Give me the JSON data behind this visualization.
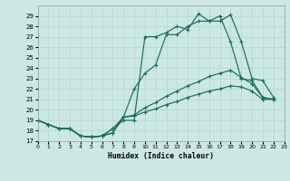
{
  "background_color": "#cce8e5",
  "grid_color": "#b8d8d5",
  "line_color": "#1a6b5a",
  "xlabel": "Humidex (Indice chaleur)",
  "ylim": [
    17,
    30
  ],
  "xlim": [
    0,
    23
  ],
  "yticks": [
    17,
    18,
    19,
    20,
    21,
    22,
    23,
    24,
    25,
    26,
    27,
    28,
    29
  ],
  "xticks": [
    0,
    1,
    2,
    3,
    4,
    5,
    6,
    7,
    8,
    9,
    10,
    11,
    12,
    13,
    14,
    15,
    16,
    17,
    18,
    19,
    20,
    21,
    22,
    23
  ],
  "line1_x": [
    0,
    1,
    2,
    3,
    4,
    5,
    6,
    7,
    8,
    9,
    10,
    11,
    12,
    13,
    14,
    15,
    16,
    17,
    18,
    19,
    20,
    21,
    22
  ],
  "line1_y": [
    19,
    18.6,
    18.2,
    18.2,
    17.5,
    17.4,
    17.5,
    18.2,
    19.0,
    19.0,
    27.0,
    27.0,
    27.4,
    28.0,
    27.7,
    29.2,
    28.5,
    28.5,
    29.1,
    26.5,
    23.0,
    22.8,
    21.2
  ],
  "line2_x": [
    0,
    1,
    2,
    3,
    4,
    5,
    6,
    7,
    8,
    9,
    10,
    11,
    12,
    13,
    14,
    15,
    16,
    17,
    18,
    19,
    20,
    21,
    22
  ],
  "line2_y": [
    19,
    18.6,
    18.2,
    18.2,
    17.5,
    17.4,
    17.5,
    18.2,
    19.3,
    22.0,
    23.5,
    24.3,
    27.2,
    27.2,
    28.0,
    28.5,
    28.5,
    29.0,
    26.5,
    23.0,
    22.8,
    21.2,
    21.0
  ],
  "line3_x": [
    0,
    1,
    2,
    3,
    4,
    5,
    6,
    7,
    8,
    9,
    10,
    11,
    12,
    13,
    14,
    15,
    16,
    17,
    18,
    19,
    20,
    21,
    22
  ],
  "line3_y": [
    19,
    18.6,
    18.2,
    18.2,
    17.5,
    17.4,
    17.5,
    17.8,
    19.3,
    19.5,
    20.2,
    20.7,
    21.3,
    21.8,
    22.3,
    22.7,
    23.2,
    23.5,
    23.8,
    23.1,
    22.5,
    21.2,
    21.0
  ],
  "line4_x": [
    0,
    1,
    2,
    3,
    4,
    5,
    6,
    7,
    8,
    9,
    10,
    11,
    12,
    13,
    14,
    15,
    16,
    17,
    18,
    19,
    20,
    21,
    22
  ],
  "line4_y": [
    19,
    18.6,
    18.2,
    18.2,
    17.5,
    17.4,
    17.5,
    17.8,
    19.3,
    19.4,
    19.8,
    20.1,
    20.5,
    20.8,
    21.2,
    21.5,
    21.8,
    22.0,
    22.3,
    22.2,
    21.8,
    21.0,
    21.0
  ]
}
